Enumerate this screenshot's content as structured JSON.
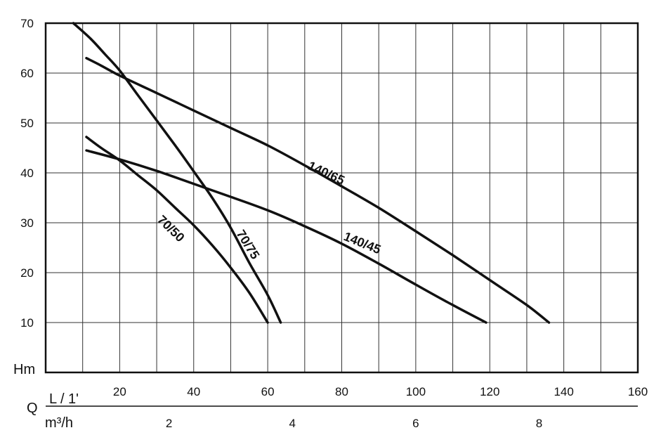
{
  "chart_data": {
    "type": "line",
    "y_axis": {
      "label": "Hm",
      "min": 0,
      "max": 70,
      "ticks": [
        "10",
        "20",
        "30",
        "40",
        "50",
        "60",
        "70"
      ]
    },
    "x_axis_lpm": {
      "label": "L / 1'",
      "min": 0,
      "max": 160,
      "ticks": [
        "20",
        "40",
        "60",
        "80",
        "100",
        "120",
        "140",
        "160"
      ]
    },
    "x_axis_m3h": {
      "label": "m³/h",
      "ticks": [
        "2",
        "4",
        "6",
        "8"
      ],
      "values": [
        2,
        4,
        6,
        8
      ]
    },
    "q_label": "Q",
    "grid": true,
    "series": [
      {
        "name": "70/75",
        "x": [
          7.5,
          12,
          16,
          20,
          25,
          30,
          35,
          40,
          45,
          50,
          55,
          60,
          63.5
        ],
        "y": [
          70.5,
          67,
          63.8,
          60.5,
          55.5,
          50.5,
          45.5,
          40.3,
          35,
          29,
          22,
          15.5,
          10
        ]
      },
      {
        "name": "140/65",
        "x": [
          11,
          15,
          20,
          30,
          40,
          50,
          60,
          70,
          80,
          90,
          100,
          110,
          120,
          130,
          136
        ],
        "y": [
          63,
          61.5,
          59.5,
          56,
          52.5,
          49,
          45.5,
          41.5,
          37.3,
          33,
          28.3,
          23.5,
          18.5,
          13.5,
          10
        ]
      },
      {
        "name": "70/50",
        "x": [
          11,
          15,
          20,
          25,
          30,
          35,
          40,
          45,
          50,
          55,
          60
        ],
        "y": [
          47.2,
          45,
          42.5,
          39.5,
          36.5,
          33,
          29.5,
          25.5,
          21,
          16,
          10
        ]
      },
      {
        "name": "140/45",
        "x": [
          11,
          20,
          30,
          40,
          50,
          60,
          70,
          80,
          90,
          100,
          110,
          119
        ],
        "y": [
          44.5,
          42.7,
          40.4,
          37.8,
          35.2,
          32.5,
          29.3,
          25.8,
          21.8,
          17.6,
          13.5,
          10
        ]
      }
    ],
    "curve_labels": [
      "140/65",
      "70/50",
      "70/75",
      "140/45"
    ]
  }
}
